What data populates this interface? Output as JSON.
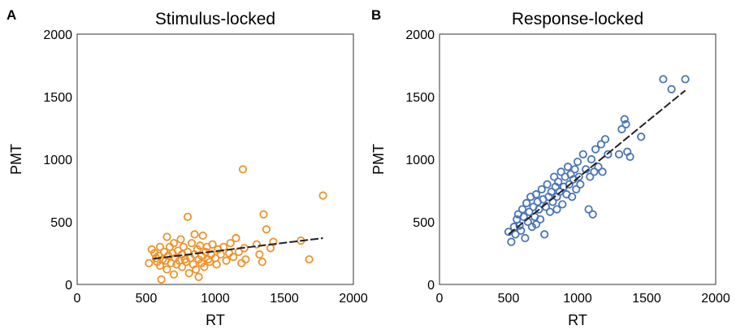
{
  "chart_data": [
    {
      "type": "scatter",
      "panel_label": "A",
      "title": "Stimulus-locked",
      "xlabel": "RT",
      "ylabel": "PMT",
      "xlim": [
        0,
        2000
      ],
      "ylim": [
        0,
        2000
      ],
      "xticks": [
        "0",
        "500",
        "1000",
        "1500",
        "2000"
      ],
      "yticks": [
        "0",
        "500",
        "1000",
        "1500",
        "2000"
      ],
      "marker_color": "#f0922a",
      "marker": "open-circle",
      "fit_line": {
        "style": "dashed",
        "color": "#222222",
        "points": [
          [
            550,
            205
          ],
          [
            1780,
            370
          ]
        ]
      },
      "series": [
        {
          "points": [
            [
              520,
              170
            ],
            [
              540,
              280
            ],
            [
              560,
              250
            ],
            [
              570,
              210
            ],
            [
              580,
              180
            ],
            [
              590,
              230
            ],
            [
              600,
              150
            ],
            [
              600,
              300
            ],
            [
              610,
              40
            ],
            [
              620,
              200
            ],
            [
              630,
              260
            ],
            [
              640,
              190
            ],
            [
              650,
              120
            ],
            [
              650,
              380
            ],
            [
              660,
              230
            ],
            [
              670,
              300
            ],
            [
              680,
              170
            ],
            [
              690,
              250
            ],
            [
              700,
              80
            ],
            [
              700,
              330
            ],
            [
              710,
              210
            ],
            [
              720,
              160
            ],
            [
              730,
              270
            ],
            [
              740,
              190
            ],
            [
              750,
              360
            ],
            [
              760,
              140
            ],
            [
              760,
              240
            ],
            [
              770,
              300
            ],
            [
              780,
              200
            ],
            [
              790,
              180
            ],
            [
              800,
              540
            ],
            [
              800,
              260
            ],
            [
              810,
              90
            ],
            [
              820,
              210
            ],
            [
              830,
              330
            ],
            [
              840,
              160
            ],
            [
              850,
              240
            ],
            [
              850,
              400
            ],
            [
              860,
              120
            ],
            [
              870,
              280
            ],
            [
              880,
              200
            ],
            [
              880,
              60
            ],
            [
              890,
              310
            ],
            [
              900,
              170
            ],
            [
              900,
              230
            ],
            [
              910,
              390
            ],
            [
              920,
              140
            ],
            [
              930,
              260
            ],
            [
              940,
              300
            ],
            [
              950,
              200
            ],
            [
              960,
              180
            ],
            [
              970,
              240
            ],
            [
              980,
              320
            ],
            [
              1000,
              210
            ],
            [
              1010,
              160
            ],
            [
              1020,
              280
            ],
            [
              1040,
              240
            ],
            [
              1060,
              300
            ],
            [
              1080,
              190
            ],
            [
              1100,
              250
            ],
            [
              1110,
              330
            ],
            [
              1130,
              220
            ],
            [
              1150,
              370
            ],
            [
              1170,
              260
            ],
            [
              1190,
              170
            ],
            [
              1200,
              920
            ],
            [
              1210,
              290
            ],
            [
              1220,
              200
            ],
            [
              1300,
              320
            ],
            [
              1320,
              240
            ],
            [
              1340,
              180
            ],
            [
              1350,
              560
            ],
            [
              1370,
              440
            ],
            [
              1400,
              290
            ],
            [
              1420,
              340
            ],
            [
              1620,
              350
            ],
            [
              1680,
              200
            ],
            [
              1780,
              710
            ]
          ]
        }
      ]
    },
    {
      "type": "scatter",
      "panel_label": "B",
      "title": "Response-locked",
      "xlabel": "RT",
      "ylabel": "PMT",
      "xlim": [
        0,
        2000
      ],
      "ylim": [
        0,
        2000
      ],
      "xticks": [
        "0",
        "500",
        "1000",
        "1500",
        "2000"
      ],
      "yticks": [
        "0",
        "500",
        "1000",
        "1500",
        "2000"
      ],
      "marker_color": "#4a74b6",
      "marker": "open-circle",
      "fit_line": {
        "style": "dashed",
        "color": "#222222",
        "points": [
          [
            500,
            400
          ],
          [
            1780,
            1550
          ]
        ]
      },
      "series": [
        {
          "points": [
            [
              500,
              420
            ],
            [
              520,
              340
            ],
            [
              540,
              460
            ],
            [
              550,
              400
            ],
            [
              560,
              520
            ],
            [
              570,
              560
            ],
            [
              580,
              470
            ],
            [
              590,
              430
            ],
            [
              600,
              600
            ],
            [
              610,
              540
            ],
            [
              620,
              370
            ],
            [
              630,
              650
            ],
            [
              640,
              500
            ],
            [
              650,
              580
            ],
            [
              660,
              700
            ],
            [
              670,
              460
            ],
            [
              680,
              620
            ],
            [
              690,
              540
            ],
            [
              700,
              720
            ],
            [
              700,
              480
            ],
            [
              710,
              660
            ],
            [
              720,
              600
            ],
            [
              730,
              520
            ],
            [
              740,
              760
            ],
            [
              750,
              680
            ],
            [
              760,
              400
            ],
            [
              770,
              620
            ],
            [
              780,
              800
            ],
            [
              790,
              700
            ],
            [
              800,
              580
            ],
            [
              810,
              740
            ],
            [
              820,
              660
            ],
            [
              830,
              860
            ],
            [
              840,
              780
            ],
            [
              850,
              600
            ],
            [
              850,
              700
            ],
            [
              860,
              820
            ],
            [
              870,
              740
            ],
            [
              880,
              900
            ],
            [
              890,
              640
            ],
            [
              900,
              780
            ],
            [
              910,
              860
            ],
            [
              920,
              720
            ],
            [
              930,
              940
            ],
            [
              940,
              800
            ],
            [
              950,
              880
            ],
            [
              960,
              700
            ],
            [
              970,
              840
            ],
            [
              980,
              920
            ],
            [
              990,
              760
            ],
            [
              1000,
              980
            ],
            [
              1010,
              860
            ],
            [
              1020,
              800
            ],
            [
              1040,
              1040
            ],
            [
              1060,
              920
            ],
            [
              1080,
              600
            ],
            [
              1090,
              860
            ],
            [
              1100,
              1000
            ],
            [
              1110,
              560
            ],
            [
              1120,
              900
            ],
            [
              1130,
              1080
            ],
            [
              1150,
              940
            ],
            [
              1170,
              1120
            ],
            [
              1180,
              900
            ],
            [
              1200,
              1160
            ],
            [
              1220,
              1040
            ],
            [
              1300,
              1040
            ],
            [
              1320,
              1240
            ],
            [
              1340,
              1320
            ],
            [
              1350,
              1280
            ],
            [
              1360,
              1060
            ],
            [
              1380,
              1020
            ],
            [
              1460,
              1180
            ],
            [
              1620,
              1640
            ],
            [
              1680,
              1560
            ],
            [
              1780,
              1640
            ]
          ]
        }
      ]
    }
  ]
}
